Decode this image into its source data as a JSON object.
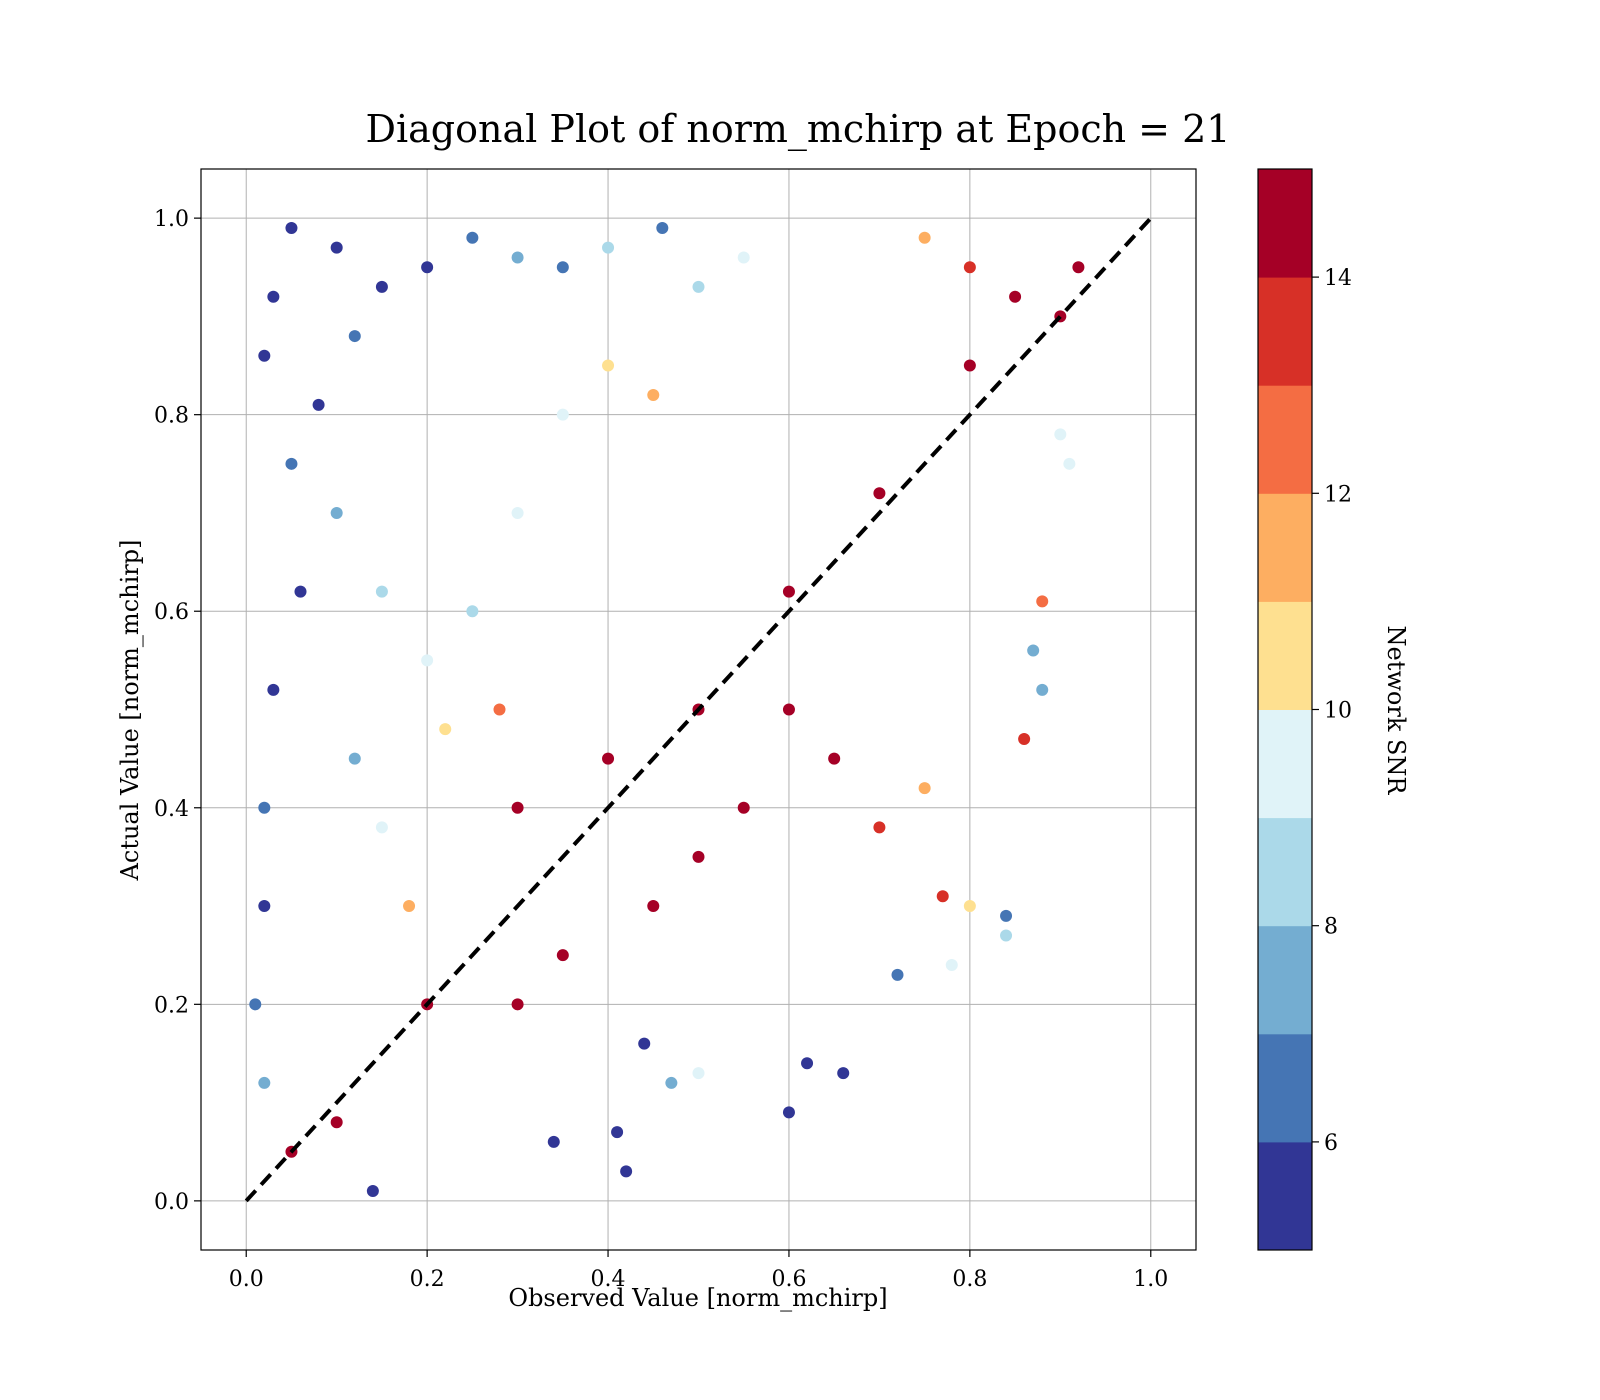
{
  "chart_data": {
    "type": "scatter",
    "title": "Diagonal Plot of norm_mchirp at Epoch = 21",
    "xlabel": "Observed Value [norm_mchirp]",
    "ylabel": "Actual Value [norm_mchirp]",
    "xlim": [
      -0.05,
      1.05
    ],
    "ylim": [
      -0.05,
      1.05
    ],
    "xticks": [
      "0.0",
      "0.2",
      "0.4",
      "0.6",
      "0.8",
      "1.0"
    ],
    "yticks": [
      "0.0",
      "0.2",
      "0.4",
      "0.6",
      "0.8",
      "1.0"
    ],
    "grid": true,
    "reference_line": {
      "style": "dashed",
      "color": "#000000",
      "x": [
        0.0,
        1.0
      ],
      "y": [
        0.0,
        1.0
      ]
    },
    "colorbar": {
      "label": "Network SNR",
      "range": [
        5,
        15
      ],
      "ticks": [
        6,
        8,
        10,
        12,
        14
      ],
      "tick_labels": [
        "6",
        "8",
        "10",
        "12",
        "14"
      ],
      "colors": [
        "#313695",
        "#4575b4",
        "#74add1",
        "#abd9e9",
        "#e0f3f8",
        "#fee090",
        "#fdae61",
        "#f46d43",
        "#d73027",
        "#a50026"
      ]
    },
    "series": [
      {
        "color_value": "Network SNR",
        "points": [
          [
            0.05,
            0.99,
            5
          ],
          [
            0.03,
            0.92,
            5
          ],
          [
            0.02,
            0.86,
            5
          ],
          [
            0.1,
            0.97,
            5
          ],
          [
            0.15,
            0.93,
            5
          ],
          [
            0.2,
            0.95,
            5
          ],
          [
            0.08,
            0.81,
            5
          ],
          [
            0.12,
            0.88,
            6
          ],
          [
            0.25,
            0.98,
            6
          ],
          [
            0.3,
            0.96,
            7
          ],
          [
            0.35,
            0.95,
            6
          ],
          [
            0.4,
            0.97,
            8
          ],
          [
            0.46,
            0.99,
            6
          ],
          [
            0.5,
            0.93,
            8
          ],
          [
            0.55,
            0.96,
            9
          ],
          [
            0.05,
            0.75,
            6
          ],
          [
            0.06,
            0.62,
            5
          ],
          [
            0.03,
            0.52,
            5
          ],
          [
            0.02,
            0.4,
            6
          ],
          [
            0.02,
            0.3,
            5
          ],
          [
            0.01,
            0.2,
            6
          ],
          [
            0.02,
            0.12,
            7
          ],
          [
            0.1,
            0.7,
            7
          ],
          [
            0.15,
            0.62,
            8
          ],
          [
            0.2,
            0.55,
            9
          ],
          [
            0.25,
            0.6,
            8
          ],
          [
            0.3,
            0.7,
            9
          ],
          [
            0.35,
            0.8,
            9
          ],
          [
            0.4,
            0.85,
            10
          ],
          [
            0.45,
            0.82,
            11
          ],
          [
            0.12,
            0.45,
            7
          ],
          [
            0.15,
            0.38,
            9
          ],
          [
            0.18,
            0.3,
            11
          ],
          [
            0.22,
            0.48,
            10
          ],
          [
            0.28,
            0.5,
            12
          ],
          [
            0.3,
            0.4,
            15
          ],
          [
            0.4,
            0.45,
            15
          ],
          [
            0.5,
            0.5,
            15
          ],
          [
            0.6,
            0.62,
            15
          ],
          [
            0.7,
            0.72,
            15
          ],
          [
            0.8,
            0.85,
            15
          ],
          [
            0.85,
            0.92,
            14
          ],
          [
            0.2,
            0.2,
            15
          ],
          [
            0.1,
            0.08,
            15
          ],
          [
            0.05,
            0.05,
            14
          ],
          [
            0.55,
            0.4,
            15
          ],
          [
            0.65,
            0.45,
            14
          ],
          [
            0.7,
            0.38,
            13
          ],
          [
            0.75,
            0.42,
            11
          ],
          [
            0.8,
            0.3,
            10
          ],
          [
            0.84,
            0.29,
            6
          ],
          [
            0.84,
            0.27,
            8
          ],
          [
            0.77,
            0.31,
            13
          ],
          [
            0.78,
            0.24,
            9
          ],
          [
            0.72,
            0.23,
            6
          ],
          [
            0.66,
            0.13,
            5
          ],
          [
            0.62,
            0.14,
            5
          ],
          [
            0.6,
            0.09,
            5
          ],
          [
            0.42,
            0.03,
            5
          ],
          [
            0.41,
            0.07,
            5
          ],
          [
            0.47,
            0.12,
            7
          ],
          [
            0.5,
            0.13,
            9
          ],
          [
            0.44,
            0.16,
            5
          ],
          [
            0.34,
            0.06,
            5
          ],
          [
            0.14,
            0.01,
            5
          ],
          [
            0.3,
            0.2,
            15
          ],
          [
            0.35,
            0.25,
            15
          ],
          [
            0.45,
            0.3,
            15
          ],
          [
            0.5,
            0.35,
            15
          ],
          [
            0.6,
            0.5,
            15
          ],
          [
            0.9,
            0.78,
            9
          ],
          [
            0.88,
            0.61,
            12
          ],
          [
            0.87,
            0.56,
            7
          ],
          [
            0.88,
            0.52,
            7
          ],
          [
            0.86,
            0.47,
            13
          ],
          [
            0.91,
            0.75,
            9
          ],
          [
            0.92,
            0.95,
            14
          ],
          [
            0.9,
            0.9,
            15
          ],
          [
            0.8,
            0.95,
            13
          ],
          [
            0.75,
            0.98,
            11
          ]
        ]
      }
    ]
  }
}
